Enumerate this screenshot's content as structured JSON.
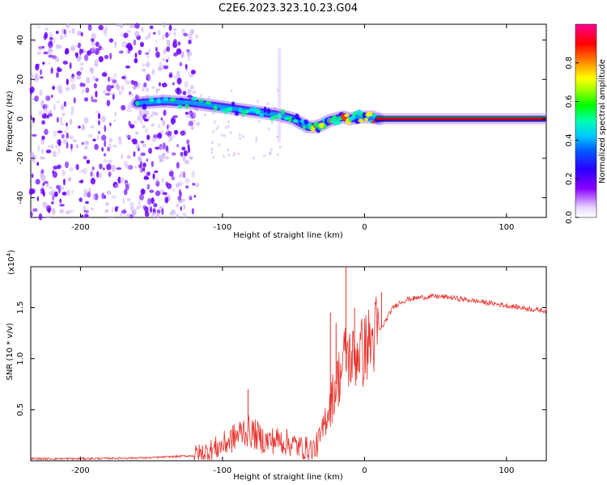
{
  "title": "C2E6.2023.323.10.23.G04",
  "colors": {
    "snr_line": "#e8312b",
    "scatter_purple": "#6a00ff",
    "scatter_light": "#c9a8f5",
    "baseline_green": "#1a7a1a",
    "baseline_red": "#e00000"
  },
  "chart_data": [
    {
      "type": "heatmap",
      "title": "C2E6.2023.323.10.23.G04",
      "xlabel": "Height of straight line (km)",
      "ylabel": "Frequency (Hz)",
      "xlim": [
        -235,
        128
      ],
      "ylim": [
        -50,
        48
      ],
      "x_ticks": [
        -200,
        -100,
        0,
        100
      ],
      "y_ticks": [
        40,
        20,
        0,
        -20,
        -40
      ],
      "x_tick_labels": [
        "-200",
        "-100",
        "0",
        "100"
      ],
      "y_tick_labels": [
        "40",
        "20",
        "0",
        "-20",
        "-40"
      ],
      "colorbar": {
        "label": "Normalized spectral amplitude",
        "range": [
          0,
          1
        ],
        "ticks": [
          0.0,
          0.2,
          0.4,
          0.6,
          0.8
        ],
        "tick_labels": [
          "0.0",
          "0.2",
          "0.4",
          "0.6",
          "0.8"
        ],
        "colormap": "rainbow (white-violet-blue-cyan-green-yellow-red-magenta)"
      },
      "ridge": {
        "x": [
          -160,
          -140,
          -120,
          -100,
          -90,
          -80,
          -70,
          -60,
          -50,
          -45,
          -40,
          -35,
          -30,
          -25,
          -20,
          -15,
          -10,
          -5,
          0,
          5,
          10
        ],
        "freq": [
          8,
          9,
          8,
          6,
          5,
          4,
          3,
          2,
          0,
          -2,
          -4,
          -4,
          -3,
          -1,
          0,
          1,
          0,
          1,
          1,
          1,
          0
        ]
      },
      "baseline": {
        "x_start": 8,
        "x_end": 128,
        "freq": 0
      }
    },
    {
      "type": "line",
      "xlabel": "Height of straight line (km)",
      "ylabel": "SNR (10 * v/v)",
      "multiplier_label": "(x10",
      "multiplier_exponent": "4",
      "multiplier_close": ")",
      "xlim": [
        -235,
        128
      ],
      "ylim": [
        0,
        1.9
      ],
      "x_ticks": [
        -200,
        -100,
        0,
        100
      ],
      "y_ticks": [
        0.5,
        1.0,
        1.5
      ],
      "x_tick_labels": [
        "-200",
        "-100",
        "0",
        "100"
      ],
      "y_tick_labels": [
        "0.5",
        "1.0",
        "1.5"
      ],
      "series": [
        {
          "name": "SNR",
          "x": [
            -235,
            -200,
            -150,
            -120,
            -110,
            -100,
            -95,
            -90,
            -85,
            -80,
            -75,
            -70,
            -65,
            -60,
            -55,
            -50,
            -45,
            -40,
            -35,
            -30,
            -27,
            -24,
            -20,
            -16,
            -13,
            -10,
            -7,
            -4,
            -1,
            2,
            5,
            8,
            12,
            16,
            20,
            25,
            30,
            40,
            50,
            60,
            70,
            80,
            90,
            100,
            110,
            120,
            128
          ],
          "values": [
            0.02,
            0.02,
            0.03,
            0.05,
            0.09,
            0.15,
            0.2,
            0.24,
            0.3,
            0.28,
            0.24,
            0.19,
            0.2,
            0.2,
            0.18,
            0.16,
            0.13,
            0.12,
            0.12,
            0.25,
            0.45,
            0.55,
            0.75,
            0.9,
            1.05,
            1.0,
            1.0,
            1.1,
            1.05,
            1.15,
            1.15,
            1.25,
            1.3,
            1.4,
            1.5,
            1.55,
            1.58,
            1.6,
            1.61,
            1.6,
            1.58,
            1.56,
            1.54,
            1.52,
            1.5,
            1.48,
            1.47
          ]
        }
      ],
      "spikes": [
        {
          "x": -82,
          "value": 0.7
        },
        {
          "x": -13,
          "value": 1.95
        },
        {
          "x": -24,
          "value": 1.45
        },
        {
          "x": -7,
          "value": 1.5
        },
        {
          "x": 12,
          "value": 1.65
        },
        {
          "x": -20,
          "value": 1.35
        }
      ]
    }
  ]
}
